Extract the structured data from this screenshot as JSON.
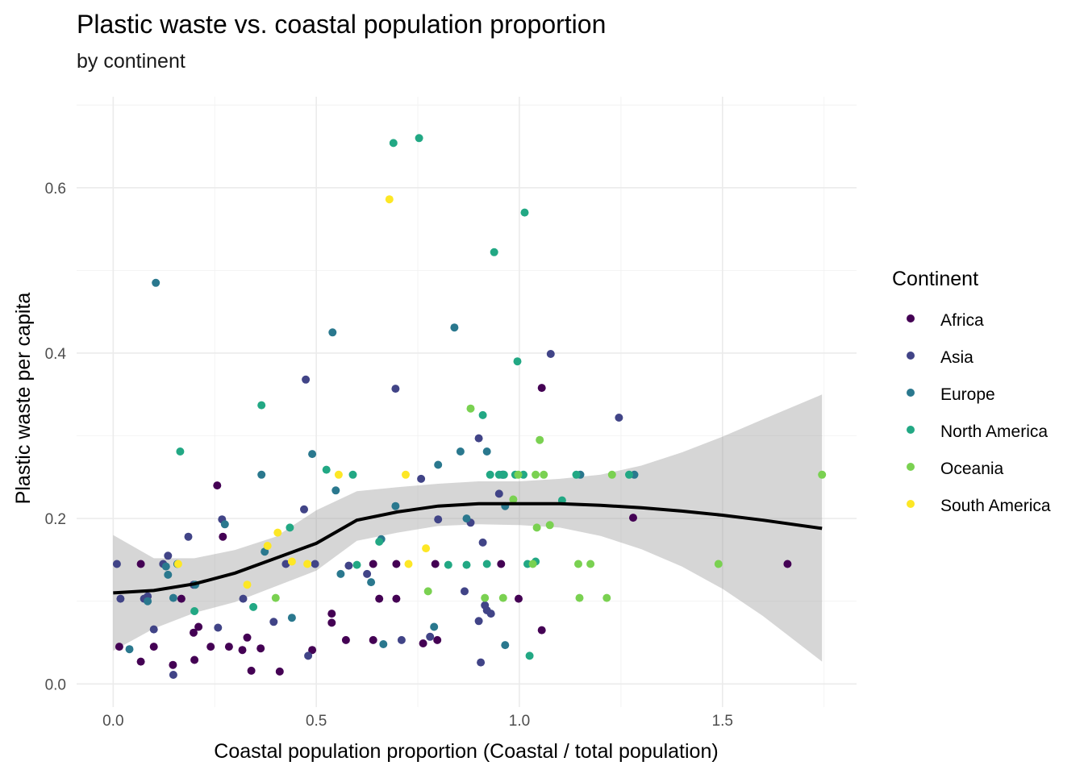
{
  "chart_data": {
    "type": "scatter",
    "title": "Plastic waste vs. coastal population proportion",
    "subtitle": "by continent",
    "xlabel": "Coastal population proportion (Coastal / total population)",
    "ylabel": "Plastic waste per capita",
    "xlim": [
      -0.09,
      1.83
    ],
    "ylim": [
      -0.028,
      0.71
    ],
    "x_ticks": [
      0.0,
      0.5,
      1.0,
      1.5
    ],
    "x_tick_labels": [
      "0.0",
      "0.5",
      "1.0",
      "1.5"
    ],
    "y_ticks": [
      0.0,
      0.2,
      0.4,
      0.6
    ],
    "y_tick_labels": [
      "0.0",
      "0.2",
      "0.4",
      "0.6"
    ],
    "grid": true,
    "legend": {
      "title": "Continent",
      "position": "right",
      "entries": [
        {
          "name": "Africa",
          "color": "#440154"
        },
        {
          "name": "Asia",
          "color": "#414487"
        },
        {
          "name": "Europe",
          "color": "#2A788E"
        },
        {
          "name": "North America",
          "color": "#22A884"
        },
        {
          "name": "Oceania",
          "color": "#7AD151"
        },
        {
          "name": "South America",
          "color": "#FDE725"
        }
      ]
    },
    "series": [
      {
        "name": "Africa",
        "points": [
          [
            0.015,
            0.045
          ],
          [
            0.068,
            0.027
          ],
          [
            0.1,
            0.045
          ],
          [
            0.147,
            0.023
          ],
          [
            0.168,
            0.103
          ],
          [
            0.198,
            0.062
          ],
          [
            0.2,
            0.029
          ],
          [
            0.21,
            0.069
          ],
          [
            0.24,
            0.045
          ],
          [
            0.256,
            0.24
          ],
          [
            0.27,
            0.178
          ],
          [
            0.285,
            0.045
          ],
          [
            0.318,
            0.041
          ],
          [
            0.33,
            0.056
          ],
          [
            0.34,
            0.016
          ],
          [
            0.363,
            0.043
          ],
          [
            0.41,
            0.015
          ],
          [
            0.49,
            0.041
          ],
          [
            0.538,
            0.085
          ],
          [
            0.538,
            0.074
          ],
          [
            0.573,
            0.053
          ],
          [
            0.64,
            0.145
          ],
          [
            0.64,
            0.053
          ],
          [
            0.655,
            0.103
          ],
          [
            0.697,
            0.145
          ],
          [
            0.697,
            0.103
          ],
          [
            0.763,
            0.049
          ],
          [
            0.793,
            0.145
          ],
          [
            0.798,
            0.053
          ],
          [
            0.955,
            0.145
          ],
          [
            0.998,
            0.103
          ],
          [
            1.055,
            0.358
          ],
          [
            1.055,
            0.065
          ],
          [
            0.068,
            0.145
          ],
          [
            1.28,
            0.201
          ],
          [
            1.66,
            0.145
          ]
        ]
      },
      {
        "name": "Asia",
        "points": [
          [
            0.009,
            0.145
          ],
          [
            0.018,
            0.103
          ],
          [
            0.076,
            0.103
          ],
          [
            0.085,
            0.106
          ],
          [
            0.1,
            0.066
          ],
          [
            0.123,
            0.145
          ],
          [
            0.135,
            0.155
          ],
          [
            0.148,
            0.011
          ],
          [
            0.185,
            0.178
          ],
          [
            0.198,
            0.12
          ],
          [
            0.258,
            0.068
          ],
          [
            0.268,
            0.199
          ],
          [
            0.32,
            0.103
          ],
          [
            0.395,
            0.075
          ],
          [
            0.425,
            0.145
          ],
          [
            0.47,
            0.211
          ],
          [
            0.474,
            0.368
          ],
          [
            0.48,
            0.034
          ],
          [
            0.497,
            0.145
          ],
          [
            0.625,
            0.133
          ],
          [
            0.695,
            0.357
          ],
          [
            0.71,
            0.053
          ],
          [
            0.758,
            0.248
          ],
          [
            0.78,
            0.057
          ],
          [
            0.8,
            0.199
          ],
          [
            0.865,
            0.112
          ],
          [
            0.9,
            0.076
          ],
          [
            0.9,
            0.297
          ],
          [
            0.905,
            0.026
          ],
          [
            0.91,
            0.171
          ],
          [
            0.915,
            0.095
          ],
          [
            0.92,
            0.089
          ],
          [
            0.93,
            0.085
          ],
          [
            0.96,
            0.253
          ],
          [
            1.077,
            0.399
          ],
          [
            1.245,
            0.322
          ],
          [
            0.58,
            0.143
          ],
          [
            0.88,
            0.195
          ],
          [
            0.95,
            0.23
          ]
        ]
      },
      {
        "name": "Europe",
        "points": [
          [
            0.04,
            0.042
          ],
          [
            0.085,
            0.1
          ],
          [
            0.105,
            0.485
          ],
          [
            0.13,
            0.142
          ],
          [
            0.135,
            0.132
          ],
          [
            0.148,
            0.104
          ],
          [
            0.158,
            0.145
          ],
          [
            0.202,
            0.12
          ],
          [
            0.275,
            0.193
          ],
          [
            0.365,
            0.253
          ],
          [
            0.373,
            0.16
          ],
          [
            0.44,
            0.08
          ],
          [
            0.49,
            0.278
          ],
          [
            0.54,
            0.425
          ],
          [
            0.548,
            0.234
          ],
          [
            0.56,
            0.133
          ],
          [
            0.635,
            0.123
          ],
          [
            0.66,
            0.175
          ],
          [
            0.665,
            0.048
          ],
          [
            0.695,
            0.215
          ],
          [
            0.79,
            0.069
          ],
          [
            0.8,
            0.265
          ],
          [
            0.84,
            0.431
          ],
          [
            0.855,
            0.281
          ],
          [
            0.87,
            0.2
          ],
          [
            0.92,
            0.281
          ],
          [
            0.958,
            0.253
          ],
          [
            0.965,
            0.047
          ],
          [
            0.965,
            0.215
          ],
          [
            1.15,
            0.253
          ],
          [
            1.283,
            0.253
          ]
        ]
      },
      {
        "name": "North America",
        "points": [
          [
            0.165,
            0.281
          ],
          [
            0.2,
            0.088
          ],
          [
            0.345,
            0.093
          ],
          [
            0.365,
            0.337
          ],
          [
            0.435,
            0.189
          ],
          [
            0.525,
            0.259
          ],
          [
            0.59,
            0.253
          ],
          [
            0.6,
            0.144
          ],
          [
            0.655,
            0.172
          ],
          [
            0.69,
            0.654
          ],
          [
            0.753,
            0.66
          ],
          [
            0.825,
            0.144
          ],
          [
            0.87,
            0.144
          ],
          [
            0.91,
            0.325
          ],
          [
            0.92,
            0.145
          ],
          [
            0.928,
            0.253
          ],
          [
            0.938,
            0.522
          ],
          [
            0.95,
            0.253
          ],
          [
            0.962,
            0.253
          ],
          [
            0.99,
            0.253
          ],
          [
            0.995,
            0.39
          ],
          [
            1.01,
            0.253
          ],
          [
            1.013,
            0.57
          ],
          [
            1.02,
            0.145
          ],
          [
            1.025,
            0.034
          ],
          [
            1.04,
            0.148
          ],
          [
            1.105,
            0.222
          ],
          [
            1.14,
            0.253
          ],
          [
            1.27,
            0.253
          ]
        ]
      },
      {
        "name": "Oceania",
        "points": [
          [
            0.4,
            0.104
          ],
          [
            0.775,
            0.112
          ],
          [
            0.88,
            0.333
          ],
          [
            0.915,
            0.104
          ],
          [
            0.96,
            0.104
          ],
          [
            0.985,
            0.223
          ],
          [
            0.997,
            0.253
          ],
          [
            1.033,
            0.145
          ],
          [
            1.04,
            0.253
          ],
          [
            1.043,
            0.189
          ],
          [
            1.05,
            0.295
          ],
          [
            1.06,
            0.253
          ],
          [
            1.075,
            0.192
          ],
          [
            1.145,
            0.145
          ],
          [
            1.148,
            0.104
          ],
          [
            1.175,
            0.145
          ],
          [
            1.215,
            0.104
          ],
          [
            1.228,
            0.253
          ],
          [
            1.49,
            0.145
          ],
          [
            1.745,
            0.253
          ]
        ]
      },
      {
        "name": "South America",
        "points": [
          [
            0.16,
            0.145
          ],
          [
            0.33,
            0.12
          ],
          [
            0.38,
            0.167
          ],
          [
            0.405,
            0.183
          ],
          [
            0.44,
            0.148
          ],
          [
            0.478,
            0.145
          ],
          [
            0.555,
            0.253
          ],
          [
            0.68,
            0.586
          ],
          [
            0.72,
            0.253
          ],
          [
            0.727,
            0.145
          ],
          [
            0.77,
            0.164
          ]
        ]
      }
    ],
    "smooth": {
      "method": "loess",
      "color": "#000000",
      "x": [
        0.0,
        0.1,
        0.2,
        0.3,
        0.4,
        0.5,
        0.6,
        0.7,
        0.8,
        0.9,
        1.0,
        1.1,
        1.2,
        1.3,
        1.4,
        1.5,
        1.6,
        1.745
      ],
      "y": [
        0.11,
        0.113,
        0.121,
        0.134,
        0.152,
        0.17,
        0.198,
        0.208,
        0.215,
        0.218,
        0.218,
        0.218,
        0.216,
        0.213,
        0.209,
        0.204,
        0.198,
        0.188
      ],
      "ymin": [
        0.04,
        0.067,
        0.086,
        0.099,
        0.118,
        0.137,
        0.173,
        0.183,
        0.191,
        0.193,
        0.192,
        0.189,
        0.179,
        0.163,
        0.142,
        0.115,
        0.082,
        0.027
      ],
      "ymax": [
        0.18,
        0.152,
        0.152,
        0.162,
        0.178,
        0.21,
        0.233,
        0.238,
        0.242,
        0.245,
        0.245,
        0.248,
        0.253,
        0.264,
        0.28,
        0.299,
        0.32,
        0.35
      ],
      "ribbon_color": "#999999"
    }
  }
}
